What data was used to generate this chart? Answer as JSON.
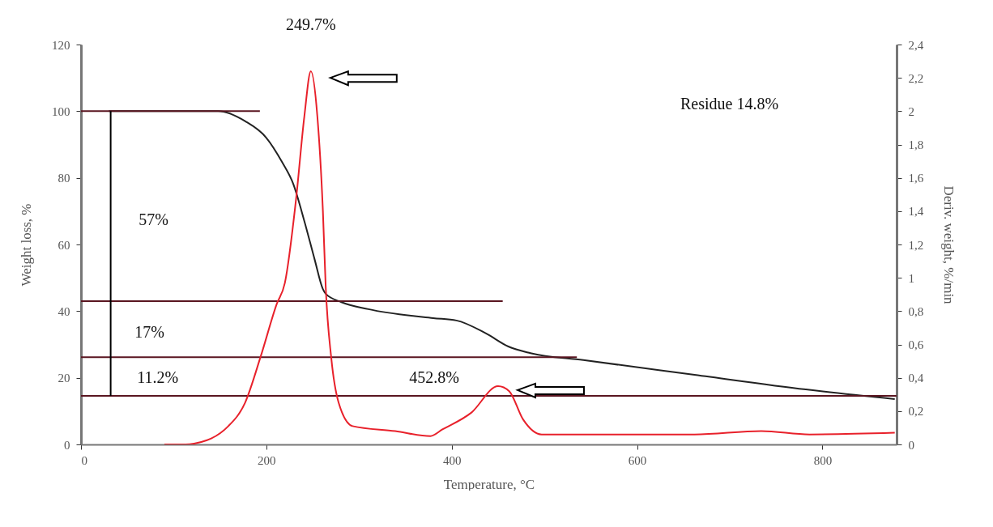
{
  "chart_data": {
    "type": "line",
    "xlabel": "Temperature, °C",
    "ylabel": "Weight loss, %",
    "y2label": "Deriv. weight, %/min",
    "xlim": [
      0,
      880
    ],
    "xticks": [
      0,
      200,
      400,
      600,
      800
    ],
    "ylim": [
      0,
      120
    ],
    "yticks": [
      0,
      20,
      40,
      60,
      80,
      100,
      120
    ],
    "y2lim": [
      0,
      2.4
    ],
    "y2ticks": [
      0,
      {
        "value": 0.2,
        "label": "0,2"
      },
      {
        "value": 0.4,
        "label": "0,4"
      },
      {
        "value": 0.6,
        "label": "0,6"
      },
      {
        "value": 0.8,
        "label": "0,8"
      },
      1,
      {
        "value": 1.2,
        "label": "1,2"
      },
      {
        "value": 1.4,
        "label": "1,4"
      },
      {
        "value": 1.6,
        "label": "1,6"
      },
      {
        "value": 1.8,
        "label": "1,8"
      },
      2,
      {
        "value": 2.2,
        "label": "2,2"
      },
      {
        "value": 2.4,
        "label": "2,4"
      }
    ],
    "grid": false,
    "legend": false,
    "marker": "none",
    "line_style": "solid",
    "series": [
      {
        "color": "#222222",
        "x": [
          30,
          100,
          148,
          177,
          200,
          217,
          229,
          241,
          252,
          261,
          264,
          281,
          310,
          380,
          405,
          437,
          461,
          485,
          542,
          662,
          782,
          878
        ],
        "values": [
          100,
          100,
          100,
          97,
          92,
          84.7,
          78.2,
          67,
          55.6,
          46.6,
          45.2,
          42.7,
          40.6,
          37.9,
          37.2,
          33.3,
          29.4,
          27.4,
          25.3,
          20.9,
          16.5,
          13.6
        ]
      },
      {
        "color": "#5a1520",
        "x": [
          0,
          193
        ],
        "values": [
          100,
          100
        ]
      },
      {
        "color": "#5a1520",
        "x": [
          0,
          455
        ],
        "values": [
          43,
          43
        ]
      },
      {
        "color": "#5a1520",
        "x": [
          0,
          535
        ],
        "values": [
          26.2,
          26.2
        ]
      },
      {
        "color": "#5a1520",
        "x": [
          0,
          880
        ],
        "values": [
          14.6,
          14.6
        ]
      },
      {
        "color": "#000000",
        "x": [
          32,
          32
        ],
        "values": [
          100,
          14.6
        ]
      },
      {
        "color": "#e8212b",
        "axis": "y2",
        "x": [
          90,
          113,
          122,
          159,
          177,
          194,
          211,
          220,
          232,
          241,
          248,
          255,
          261,
          264,
          270,
          278,
          293,
          339,
          377,
          390,
          421,
          450,
          462,
          477,
          497,
          582,
          662,
          734,
          786,
          878
        ],
        "values": [
          0,
          0,
          0.005,
          0.11,
          0.25,
          0.53,
          0.84,
          0.97,
          1.47,
          1.97,
          2.24,
          1.97,
          1.4,
          0.95,
          0.52,
          0.25,
          0.11,
          0.08,
          0.05,
          0.09,
          0.19,
          0.35,
          0.32,
          0.15,
          0.06,
          0.06,
          0.06,
          0.08,
          0.06,
          0.07
        ]
      }
    ],
    "annotations": [
      "249.7%",
      "57%",
      "17%",
      "11.2%",
      "452.8%",
      "Residue 14.8%"
    ]
  }
}
